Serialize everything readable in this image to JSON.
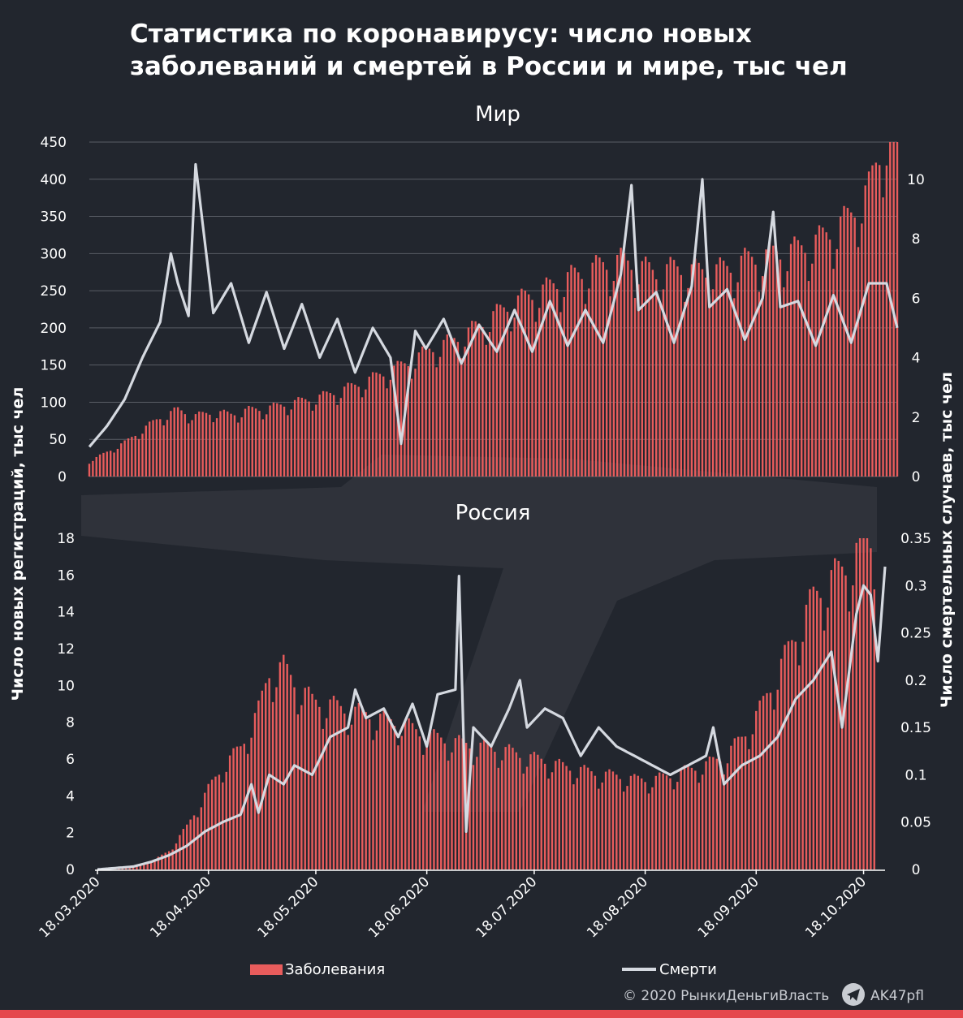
{
  "title": "Статистика по коронавирусу: число новых заболеваний и смертей в России и мире, тыс чел",
  "colors": {
    "background": "#22262e",
    "cases": "#e85c5c",
    "deaths": "#d5d9e0",
    "grid": "#5a5e66",
    "bar": "#e5484d"
  },
  "chart_data": [
    {
      "type": "bar+line",
      "title": "Мир",
      "x_range": [
        "18.03.2020",
        "01.11.2020"
      ],
      "ylabel": "Число новых регистраций, тыс чел",
      "y2label": "Число смертельных случаев, тыс чел",
      "ylim": [
        0,
        450
      ],
      "y2lim": [
        0,
        11.25
      ],
      "yticks": [
        "0",
        "50",
        "100",
        "150",
        "200",
        "250",
        "300",
        "350",
        "400",
        "450"
      ],
      "y2ticks": [
        "0",
        "2",
        "4",
        "6",
        "8",
        "10"
      ],
      "grid": true,
      "series": [
        {
          "name": "Заболевания",
          "kind": "bar",
          "anchors_day_value": [
            [
              0,
              20
            ],
            [
              10,
              45
            ],
            [
              15,
              62
            ],
            [
              20,
              78
            ],
            [
              25,
              88
            ],
            [
              30,
              80
            ],
            [
              35,
              85
            ],
            [
              40,
              82
            ],
            [
              45,
              88
            ],
            [
              50,
              90
            ],
            [
              55,
              95
            ],
            [
              60,
              100
            ],
            [
              65,
              105
            ],
            [
              70,
              112
            ],
            [
              75,
              120
            ],
            [
              80,
              130
            ],
            [
              85,
              140
            ],
            [
              90,
              150
            ],
            [
              95,
              165
            ],
            [
              100,
              175
            ],
            [
              105,
              185
            ],
            [
              110,
              200
            ],
            [
              115,
              215
            ],
            [
              120,
              230
            ],
            [
              125,
              240
            ],
            [
              130,
              250
            ],
            [
              135,
              262
            ],
            [
              140,
              270
            ],
            [
              145,
              280
            ],
            [
              150,
              285
            ],
            [
              155,
              278
            ],
            [
              160,
              268
            ],
            [
              165,
              275
            ],
            [
              170,
              272
            ],
            [
              175,
              270
            ],
            [
              180,
              275
            ],
            [
              185,
              285
            ],
            [
              190,
              290
            ],
            [
              195,
              295
            ],
            [
              200,
              300
            ],
            [
              205,
              310
            ],
            [
              210,
              325
            ],
            [
              215,
              345
            ],
            [
              220,
              380
            ],
            [
              222,
              410
            ],
            [
              225,
              450
            ],
            [
              228,
              440
            ]
          ]
        },
        {
          "name": "Смерти",
          "kind": "line",
          "anchors_day_value": [
            [
              0,
              1.0
            ],
            [
              5,
              1.7
            ],
            [
              10,
              2.6
            ],
            [
              15,
              4.0
            ],
            [
              20,
              5.2
            ],
            [
              23,
              7.5
            ],
            [
              25,
              6.5
            ],
            [
              28,
              5.4
            ],
            [
              30,
              10.5
            ],
            [
              32,
              8.5
            ],
            [
              35,
              5.5
            ],
            [
              40,
              6.5
            ],
            [
              45,
              4.5
            ],
            [
              50,
              6.2
            ],
            [
              55,
              4.3
            ],
            [
              60,
              5.8
            ],
            [
              65,
              4.0
            ],
            [
              70,
              5.3
            ],
            [
              75,
              3.5
            ],
            [
              80,
              5.0
            ],
            [
              85,
              4.0
            ],
            [
              88,
              1.1
            ],
            [
              92,
              4.9
            ],
            [
              95,
              4.3
            ],
            [
              100,
              5.3
            ],
            [
              105,
              3.8
            ],
            [
              110,
              5.1
            ],
            [
              115,
              4.2
            ],
            [
              120,
              5.6
            ],
            [
              125,
              4.2
            ],
            [
              130,
              5.9
            ],
            [
              135,
              4.4
            ],
            [
              140,
              5.6
            ],
            [
              145,
              4.5
            ],
            [
              150,
              6.8
            ],
            [
              153,
              9.8
            ],
            [
              155,
              5.6
            ],
            [
              160,
              6.2
            ],
            [
              165,
              4.5
            ],
            [
              170,
              6.4
            ],
            [
              173,
              10.0
            ],
            [
              175,
              5.7
            ],
            [
              180,
              6.3
            ],
            [
              185,
              4.6
            ],
            [
              190,
              6.0
            ],
            [
              193,
              8.9
            ],
            [
              195,
              5.7
            ],
            [
              200,
              5.9
            ],
            [
              205,
              4.4
            ],
            [
              210,
              6.1
            ],
            [
              215,
              4.5
            ],
            [
              220,
              6.5
            ],
            [
              225,
              6.5
            ],
            [
              228,
              5.0
            ]
          ]
        }
      ]
    },
    {
      "type": "bar+line",
      "title": "Россия",
      "x_range": [
        "18.03.2020",
        "01.11.2020"
      ],
      "ylabel": "Число новых регистраций, тыс чел",
      "y2label": "Число смертельных случаев, тыс чел",
      "ylim": [
        0,
        18
      ],
      "y2lim": [
        0,
        0.35
      ],
      "yticks": [
        "0",
        "2",
        "4",
        "6",
        "8",
        "10",
        "12",
        "14",
        "16",
        "18"
      ],
      "y2ticks": [
        "0",
        "0.05",
        "0.1",
        "0.15",
        "0.2",
        "0.25",
        "0.3",
        "0.35"
      ],
      "xticks": [
        "18.03.2020",
        "18.04.2020",
        "18.05.2020",
        "18.06.2020",
        "18.07.2020",
        "18.08.2020",
        "18.09.2020",
        "18.10.2020"
      ],
      "grid": false,
      "series": [
        {
          "name": "Заболевания",
          "kind": "bar",
          "anchors_day_value": [
            [
              0,
              0
            ],
            [
              8,
              0.1
            ],
            [
              15,
              0.4
            ],
            [
              20,
              1.0
            ],
            [
              25,
              2.3
            ],
            [
              31,
              4.3
            ],
            [
              35,
              5.5
            ],
            [
              40,
              6.5
            ],
            [
              45,
              8.5
            ],
            [
              48,
              10.5
            ],
            [
              52,
              10.8
            ],
            [
              55,
              10.0
            ],
            [
              60,
              9.0
            ],
            [
              65,
              8.8
            ],
            [
              70,
              8.5
            ],
            [
              75,
              8.3
            ],
            [
              80,
              8.0
            ],
            [
              85,
              7.8
            ],
            [
              90,
              7.3
            ],
            [
              95,
              7.0
            ],
            [
              100,
              6.8
            ],
            [
              105,
              6.6
            ],
            [
              110,
              6.5
            ],
            [
              115,
              6.3
            ],
            [
              120,
              6.0
            ],
            [
              125,
              5.8
            ],
            [
              130,
              5.5
            ],
            [
              135,
              5.3
            ],
            [
              140,
              5.1
            ],
            [
              145,
              5.0
            ],
            [
              150,
              4.8
            ],
            [
              155,
              4.8
            ],
            [
              160,
              5.0
            ],
            [
              165,
              5.3
            ],
            [
              170,
              5.6
            ],
            [
              175,
              6.0
            ],
            [
              180,
              7.0
            ],
            [
              185,
              8.5
            ],
            [
              190,
              10.5
            ],
            [
              195,
              12.5
            ],
            [
              200,
              14.5
            ],
            [
              205,
              15.5
            ],
            [
              210,
              16.3
            ],
            [
              214,
              17.5
            ],
            [
              217,
              17.7
            ]
          ]
        },
        {
          "name": "Смерти",
          "kind": "line",
          "anchors_day_value": [
            [
              0,
              0
            ],
            [
              10,
              0.003
            ],
            [
              15,
              0.008
            ],
            [
              20,
              0.015
            ],
            [
              25,
              0.025
            ],
            [
              30,
              0.04
            ],
            [
              35,
              0.05
            ],
            [
              40,
              0.058
            ],
            [
              43,
              0.09
            ],
            [
              45,
              0.06
            ],
            [
              48,
              0.1
            ],
            [
              52,
              0.09
            ],
            [
              55,
              0.11
            ],
            [
              60,
              0.1
            ],
            [
              65,
              0.14
            ],
            [
              70,
              0.15
            ],
            [
              72,
              0.19
            ],
            [
              75,
              0.16
            ],
            [
              80,
              0.17
            ],
            [
              84,
              0.14
            ],
            [
              88,
              0.175
            ],
            [
              92,
              0.13
            ],
            [
              95,
              0.185
            ],
            [
              100,
              0.19
            ],
            [
              101,
              0.31
            ],
            [
              103,
              0.04
            ],
            [
              105,
              0.15
            ],
            [
              110,
              0.13
            ],
            [
              115,
              0.17
            ],
            [
              118,
              0.2
            ],
            [
              120,
              0.15
            ],
            [
              125,
              0.17
            ],
            [
              130,
              0.16
            ],
            [
              135,
              0.12
            ],
            [
              140,
              0.15
            ],
            [
              145,
              0.13
            ],
            [
              150,
              0.12
            ],
            [
              155,
              0.11
            ],
            [
              160,
              0.1
            ],
            [
              165,
              0.11
            ],
            [
              170,
              0.12
            ],
            [
              172,
              0.15
            ],
            [
              175,
              0.09
            ],
            [
              180,
              0.11
            ],
            [
              185,
              0.12
            ],
            [
              190,
              0.14
            ],
            [
              195,
              0.18
            ],
            [
              200,
              0.2
            ],
            [
              205,
              0.23
            ],
            [
              208,
              0.15
            ],
            [
              212,
              0.27
            ],
            [
              214,
              0.3
            ],
            [
              216,
              0.29
            ],
            [
              218,
              0.22
            ],
            [
              220,
              0.32
            ]
          ]
        }
      ]
    }
  ],
  "legend": {
    "cases": "Заболевания",
    "deaths": "Смерти",
    "position": "bottom"
  },
  "footer": {
    "copyright": "© 2020  РынкиДеньгиВласть",
    "handle": "AK47pfl"
  }
}
